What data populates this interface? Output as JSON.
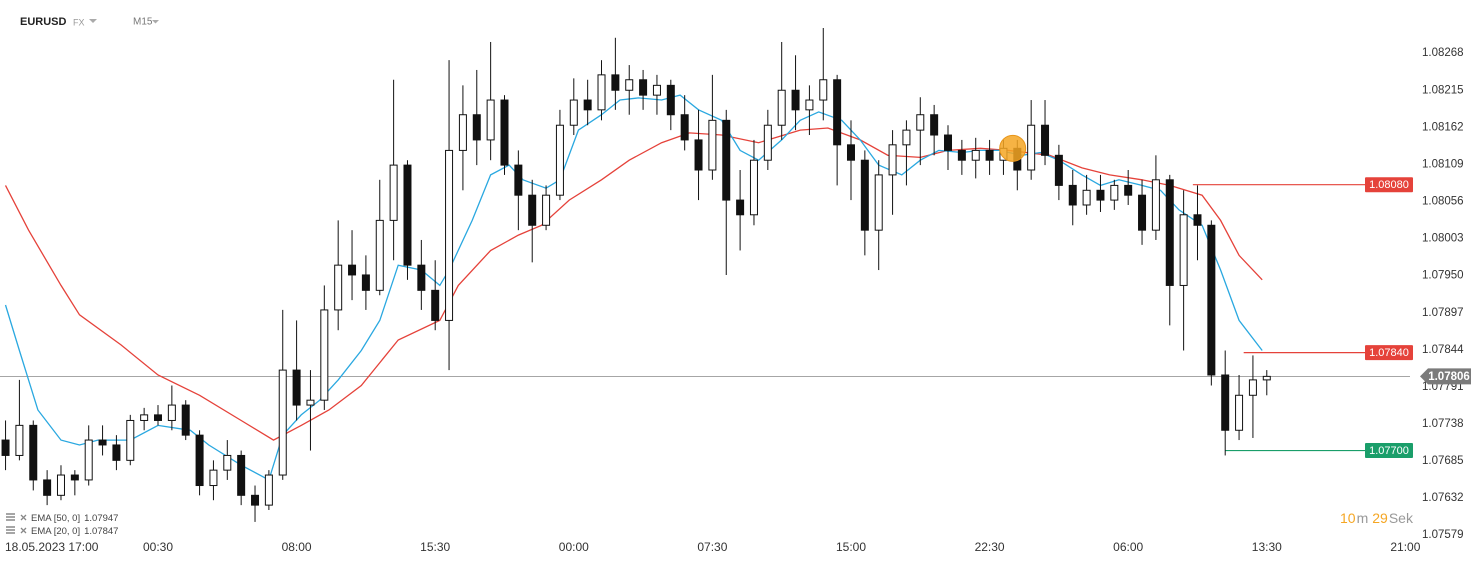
{
  "header": {
    "symbol": "EURUSD",
    "market": "FX",
    "interval": "M15"
  },
  "chart_data": {
    "type": "candlestick",
    "up_color": "#ffffff",
    "down_color": "#111111",
    "wick_color": "#111111",
    "x": [
      -3,
      0,
      3,
      6,
      9,
      12,
      15,
      18,
      21,
      24,
      27,
      30,
      33,
      36,
      39,
      42,
      45,
      48,
      51,
      54,
      57,
      60,
      63,
      66,
      69,
      72,
      75,
      78,
      81,
      84,
      87,
      90,
      93,
      96,
      99,
      102,
      105,
      108,
      111,
      114,
      117,
      120,
      123,
      126,
      129,
      132,
      135,
      138,
      141,
      144,
      147,
      150,
      153,
      156,
      159,
      162,
      165,
      168,
      171,
      174,
      177,
      180,
      183,
      186,
      189,
      192,
      195,
      198,
      201,
      204,
      207,
      210,
      213,
      216,
      219,
      222,
      225,
      228,
      231,
      234,
      237,
      240,
      243,
      246,
      249,
      252,
      255,
      258,
      261,
      264,
      267,
      270
    ],
    "open": [
      1.07715,
      1.07693,
      1.07736,
      1.07658,
      1.07636,
      1.07665,
      1.07658,
      1.07715,
      1.07708,
      1.07686,
      1.07743,
      1.07751,
      1.07743,
      1.07765,
      1.07722,
      1.0765,
      1.07672,
      1.07693,
      1.07636,
      1.07622,
      1.07665,
      1.07815,
      1.07765,
      1.07772,
      1.07901,
      1.07965,
      1.07951,
      1.07929,
      1.08029,
      1.08108,
      1.07965,
      1.07929,
      1.07886,
      1.08129,
      1.0818,
      1.08144,
      1.08201,
      1.08108,
      1.08065,
      1.08022,
      1.08065,
      1.08165,
      1.08201,
      1.08187,
      1.08237,
      1.08215,
      1.0823,
      1.08208,
      1.08222,
      1.0818,
      1.08144,
      1.08101,
      1.08172,
      1.08058,
      1.08037,
      1.08115,
      1.08165,
      1.08215,
      1.08187,
      1.08201,
      1.0823,
      1.08137,
      1.08115,
      1.08015,
      1.08094,
      1.08137,
      1.08158,
      1.0818,
      1.08151,
      1.08129,
      1.08115,
      1.08129,
      1.08115,
      1.08132,
      1.08101,
      1.08165,
      1.08122,
      1.08079,
      1.08051,
      1.08072,
      1.08058,
      1.08079,
      1.08065,
      1.08015,
      1.08087,
      1.07936,
      1.08037,
      1.08022,
      1.07808,
      1.07729,
      1.07779,
      1.07801
    ],
    "high": [
      1.07743,
      1.07801,
      1.07743,
      1.07672,
      1.07679,
      1.07672,
      1.07736,
      1.07736,
      1.07722,
      1.07751,
      1.07761,
      1.07765,
      1.07793,
      1.07772,
      1.07729,
      1.07686,
      1.07715,
      1.077,
      1.0765,
      1.07672,
      1.07901,
      1.07886,
      1.07815,
      1.07936,
      1.08029,
      1.08015,
      1.07979,
      1.08087,
      1.0823,
      1.08115,
      1.08001,
      1.07972,
      1.08258,
      1.08222,
      1.08244,
      1.08284,
      1.08208,
      1.08129,
      1.08087,
      1.08079,
      1.08187,
      1.08232,
      1.0823,
      1.08258,
      1.0829,
      1.08251,
      1.08244,
      1.08237,
      1.0823,
      1.08208,
      1.08187,
      1.08237,
      1.08187,
      1.08101,
      1.08144,
      1.08187,
      1.08284,
      1.08265,
      1.08222,
      1.08304,
      1.08237,
      1.08172,
      1.08129,
      1.08115,
      1.08158,
      1.08172,
      1.08205,
      1.08194,
      1.08165,
      1.08144,
      1.08147,
      1.08144,
      1.08144,
      1.08144,
      1.08201,
      1.08201,
      1.08137,
      1.08101,
      1.08094,
      1.08094,
      1.08087,
      1.08101,
      1.08087,
      1.08122,
      1.08094,
      1.08072,
      1.08079,
      1.08029,
      1.07843,
      1.07808,
      1.07836,
      1.07815
    ],
    "low": [
      1.07672,
      1.07686,
      1.07643,
      1.07622,
      1.07629,
      1.07636,
      1.0765,
      1.07693,
      1.07672,
      1.07679,
      1.07729,
      1.07736,
      1.07729,
      1.07715,
      1.07636,
      1.07629,
      1.07658,
      1.07622,
      1.07598,
      1.07615,
      1.07658,
      1.07743,
      1.077,
      1.07758,
      1.07872,
      1.07915,
      1.07901,
      1.07922,
      1.07972,
      1.07944,
      1.07901,
      1.07872,
      1.07815,
      1.08072,
      1.08108,
      1.08115,
      1.08094,
      1.08015,
      1.07969,
      1.08015,
      1.08058,
      1.08151,
      1.08165,
      1.08172,
      1.08187,
      1.0818,
      1.08187,
      1.0818,
      1.08158,
      1.08129,
      1.08058,
      1.08087,
      1.07951,
      1.07986,
      1.08022,
      1.08101,
      1.08144,
      1.08158,
      1.08151,
      1.08172,
      1.08079,
      1.08058,
      1.07979,
      1.07958,
      1.08037,
      1.08079,
      1.08108,
      1.08122,
      1.08101,
      1.08094,
      1.08089,
      1.08094,
      1.08094,
      1.08072,
      1.08087,
      1.08108,
      1.08058,
      1.08022,
      1.08037,
      1.08041,
      1.08044,
      1.08051,
      1.07994,
      1.08001,
      1.07879,
      1.07843,
      1.07972,
      1.07793,
      1.07693,
      1.07715,
      1.07718,
      1.07779
    ],
    "close": [
      1.07693,
      1.07736,
      1.07658,
      1.07636,
      1.07665,
      1.07658,
      1.07715,
      1.07708,
      1.07686,
      1.07743,
      1.07751,
      1.07743,
      1.07765,
      1.07722,
      1.0765,
      1.07672,
      1.07693,
      1.07636,
      1.07622,
      1.07665,
      1.07815,
      1.07765,
      1.07772,
      1.07901,
      1.07965,
      1.07951,
      1.07929,
      1.08029,
      1.08108,
      1.07965,
      1.07929,
      1.07886,
      1.08129,
      1.0818,
      1.08144,
      1.08201,
      1.08108,
      1.08065,
      1.08022,
      1.08065,
      1.08165,
      1.08201,
      1.08187,
      1.08237,
      1.08215,
      1.0823,
      1.08208,
      1.08222,
      1.0818,
      1.08144,
      1.08101,
      1.08172,
      1.08058,
      1.08037,
      1.08115,
      1.08165,
      1.08215,
      1.08187,
      1.08201,
      1.0823,
      1.08137,
      1.08115,
      1.08015,
      1.08094,
      1.08137,
      1.08158,
      1.0818,
      1.08151,
      1.08129,
      1.08115,
      1.08129,
      1.08115,
      1.08132,
      1.08101,
      1.08165,
      1.08122,
      1.08079,
      1.08051,
      1.08072,
      1.08058,
      1.08079,
      1.08065,
      1.08015,
      1.08087,
      1.07936,
      1.08037,
      1.08022,
      1.07808,
      1.07729,
      1.07779,
      1.07801,
      1.07806
    ],
    "indicators": [
      {
        "name": "EMA [50, 0]",
        "last_value": 1.07947,
        "color": "#e5423a",
        "x": [
          -3,
          2,
          9,
          13,
          22,
          30,
          39,
          48,
          55,
          61,
          67,
          74,
          82,
          91,
          95,
          102,
          108,
          113,
          119,
          126,
          132,
          139,
          145,
          152,
          160,
          169,
          175,
          182,
          188,
          195,
          201,
          208,
          214,
          223,
          230,
          236,
          243,
          249,
          256,
          260,
          264,
          269
        ],
        "values": [
          1.08079,
          1.08015,
          1.07936,
          1.07894,
          1.07851,
          1.07808,
          1.07779,
          1.07743,
          1.07715,
          1.07736,
          1.07758,
          1.07793,
          1.07858,
          1.07886,
          1.07936,
          1.07986,
          1.08008,
          1.08022,
          1.08058,
          1.08087,
          1.08115,
          1.0814,
          1.08154,
          1.08151,
          1.0814,
          1.08158,
          1.08161,
          1.08144,
          1.08122,
          1.08119,
          1.08129,
          1.08132,
          1.08129,
          1.08122,
          1.08104,
          1.08094,
          1.08087,
          1.08079,
          1.08065,
          1.08029,
          1.07979,
          1.07944
        ]
      },
      {
        "name": "EMA [20, 0]",
        "last_value": 1.07847,
        "color": "#2aa8e0",
        "x": [
          -3,
          0,
          4,
          9,
          13,
          17,
          24,
          30,
          37,
          41,
          48,
          54,
          57,
          61,
          65,
          69,
          74,
          78,
          82,
          87,
          91,
          93,
          98,
          102,
          106,
          109,
          114,
          117,
          121,
          126,
          130,
          134,
          139,
          143,
          147,
          152,
          156,
          160,
          165,
          169,
          173,
          178,
          182,
          186,
          191,
          195,
          199,
          204,
          208,
          212,
          217,
          221,
          225,
          230,
          234,
          238,
          243,
          247,
          251,
          256,
          260,
          264,
          269
        ],
        "values": [
          1.07908,
          1.07843,
          1.07758,
          1.07715,
          1.07708,
          1.07715,
          1.07715,
          1.07736,
          1.07729,
          1.07708,
          1.07679,
          1.07658,
          1.07722,
          1.07751,
          1.07772,
          1.07801,
          1.07843,
          1.07886,
          1.07965,
          1.07958,
          1.07936,
          1.07958,
          1.08029,
          1.08094,
          1.08108,
          1.08087,
          1.08075,
          1.08087,
          1.08158,
          1.0818,
          1.08201,
          1.08204,
          1.08201,
          1.08208,
          1.08187,
          1.08172,
          1.08129,
          1.08115,
          1.08144,
          1.08172,
          1.08184,
          1.08172,
          1.08144,
          1.08108,
          1.08094,
          1.08115,
          1.08129,
          1.08126,
          1.08129,
          1.08129,
          1.08122,
          1.08126,
          1.08115,
          1.08094,
          1.08079,
          1.08087,
          1.08079,
          1.08072,
          1.08044,
          1.08022,
          1.07958,
          1.07886,
          1.07843
        ]
      }
    ],
    "levels": [
      {
        "price": {
          "value": 1.0808,
          "label": "1.08080"
        },
        "start_x": 254,
        "color": "#e5423a"
      },
      {
        "price": {
          "value": 1.0784,
          "label": "1.07840"
        },
        "start_x": 265,
        "color": "#e5423a"
      },
      {
        "price": {
          "value": 1.077,
          "label": "1.07700"
        },
        "start_x": 261,
        "color": "#1a9e6a"
      }
    ],
    "current_price": 1.07806,
    "current_price_color": "#7a7a7a",
    "event_marker": {
      "x": 215,
      "y": 1.08132,
      "color": "#f5a623"
    },
    "xlim": [
      -4.2,
      301
    ],
    "ylim": [
      1.07575,
      1.08344
    ],
    "xticks": [
      {
        "value": 0,
        "label": "18.05.2023 17:00"
      },
      {
        "value": 30,
        "label": "00:30"
      },
      {
        "value": 60,
        "label": "08:00"
      },
      {
        "value": 90,
        "label": "15:30"
      },
      {
        "value": 120,
        "label": "00:00"
      },
      {
        "value": 150,
        "label": "07:30"
      },
      {
        "value": 180,
        "label": "15:00"
      },
      {
        "value": 210,
        "label": "22:30"
      },
      {
        "value": 240,
        "label": "06:00"
      },
      {
        "value": 270,
        "label": "13:30"
      },
      {
        "value": 300,
        "label": "21:00"
      }
    ],
    "yticks": [
      1.08268,
      1.08215,
      1.08162,
      1.08109,
      1.08056,
      1.08003,
      {
        "value": 1.0795,
        "label": "1.07950"
      },
      1.07897,
      1.07844,
      1.07791,
      1.07738,
      1.07685,
      1.07632,
      1.07579
    ]
  },
  "countdown": {
    "minutes": 10,
    "minutes_unit": "m",
    "seconds": 29,
    "seconds_unit": "Sek"
  }
}
